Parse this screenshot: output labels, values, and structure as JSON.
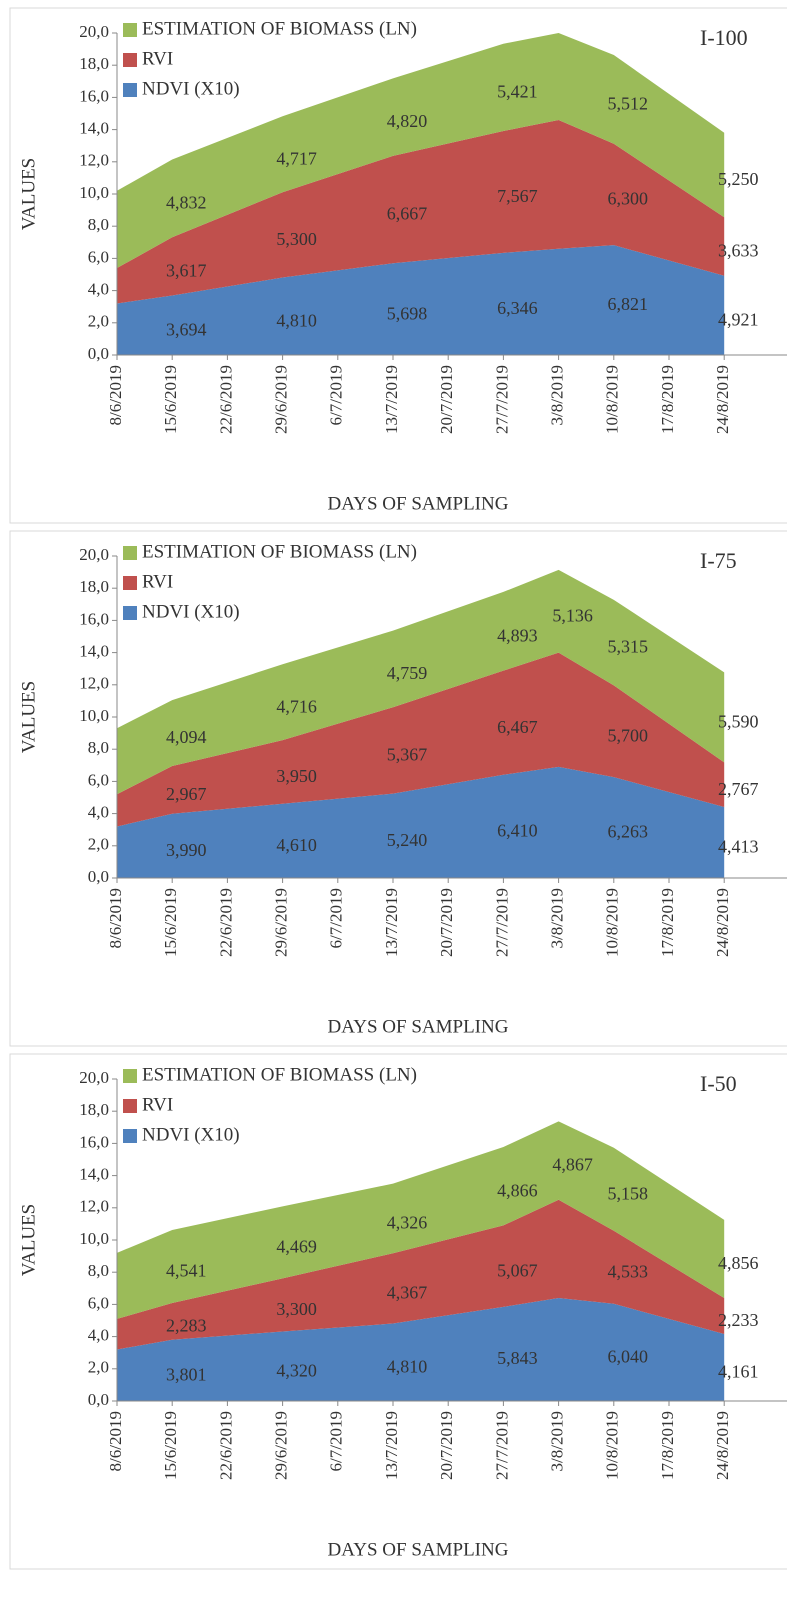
{
  "chart_data": [
    {
      "type": "area",
      "stacked": true,
      "title": "I-100",
      "x_label": "DAYS OF SAMPLING",
      "y_label": "VALUES",
      "x": [
        "8/6/2019",
        "15/6/2019",
        "29/6/2019",
        "13/7/2019",
        "27/7/2019",
        "3/8/2019",
        "10/8/2019",
        "24/8/2019"
      ],
      "xticks": [
        "8/6/2019",
        "15/6/2019",
        "22/6/2019",
        "29/6/2019",
        "6/7/2019",
        "13/7/2019",
        "20/7/2019",
        "27/7/2019",
        "3/8/2019",
        "10/8/2019",
        "17/8/2019",
        "24/8/2019"
      ],
      "ylim": [
        0,
        20
      ],
      "yticks": [
        {
          "value": 0,
          "label": "0,0"
        },
        {
          "value": 2,
          "label": "2,0"
        },
        {
          "value": 4,
          "label": "4,0"
        },
        {
          "value": 6,
          "label": "6,0"
        },
        {
          "value": 8,
          "label": "8,0"
        },
        {
          "value": 10,
          "label": "10,0"
        },
        {
          "value": 12,
          "label": "12,0"
        },
        {
          "value": 14,
          "label": "14,0"
        },
        {
          "value": 16,
          "label": "16,0"
        },
        {
          "value": 18,
          "label": "18,0"
        },
        {
          "value": 20,
          "label": "20,0"
        }
      ],
      "series": [
        {
          "name": "NDVI (X10)",
          "color": "#4f81bd",
          "values": [
            3.2,
            3.694,
            4.81,
            5.698,
            6.346,
            6.6,
            6.821,
            4.921
          ],
          "value_labels": [
            null,
            "3,694",
            "4,810",
            "5,698",
            "6,346",
            null,
            "6,821",
            "4,921"
          ]
        },
        {
          "name": "RVI",
          "color": "#c0504d",
          "values": [
            2.2,
            3.617,
            5.3,
            6.667,
            7.567,
            8.0,
            6.3,
            3.633
          ],
          "value_labels": [
            null,
            "3,617",
            "5,300",
            "6,667",
            "7,567",
            null,
            "6,300",
            "3,633"
          ]
        },
        {
          "name": "ESTIMATION OF BIOMASS (LN)",
          "color": "#9bbb59",
          "values": [
            4.8,
            4.832,
            4.717,
            4.82,
            5.421,
            5.4,
            5.512,
            5.25
          ],
          "value_labels": [
            null,
            "4,832",
            "4,717",
            "4,820",
            "5,421",
            null,
            "5,512",
            "5,250"
          ]
        }
      ]
    },
    {
      "type": "area",
      "stacked": true,
      "title": "I-75",
      "x_label": "DAYS OF SAMPLING",
      "y_label": "VALUES",
      "x": [
        "8/6/2019",
        "15/6/2019",
        "29/6/2019",
        "13/7/2019",
        "27/7/2019",
        "3/8/2019",
        "10/8/2019",
        "24/8/2019"
      ],
      "xticks": [
        "8/6/2019",
        "15/6/2019",
        "22/6/2019",
        "29/6/2019",
        "6/7/2019",
        "13/7/2019",
        "20/7/2019",
        "27/7/2019",
        "3/8/2019",
        "10/8/2019",
        "17/8/2019",
        "24/8/2019"
      ],
      "ylim": [
        0,
        20
      ],
      "yticks": [
        {
          "value": 0,
          "label": "0,0"
        },
        {
          "value": 2,
          "label": "2,0"
        },
        {
          "value": 4,
          "label": "4,0"
        },
        {
          "value": 6,
          "label": "6,0"
        },
        {
          "value": 8,
          "label": "8,0"
        },
        {
          "value": 10,
          "label": "10,0"
        },
        {
          "value": 12,
          "label": "12,0"
        },
        {
          "value": 14,
          "label": "14,0"
        },
        {
          "value": 16,
          "label": "16,0"
        },
        {
          "value": 18,
          "label": "18,0"
        },
        {
          "value": 20,
          "label": "20,0"
        }
      ],
      "series": [
        {
          "name": "NDVI (X10)",
          "color": "#4f81bd",
          "values": [
            3.2,
            3.99,
            4.61,
            5.24,
            6.41,
            6.9,
            6.263,
            4.413
          ],
          "value_labels": [
            null,
            "3,990",
            "4,610",
            "5,240",
            "6,410",
            null,
            "6,263",
            "4,413"
          ]
        },
        {
          "name": "RVI",
          "color": "#c0504d",
          "values": [
            2.0,
            2.967,
            3.95,
            5.367,
            6.467,
            7.1,
            5.7,
            2.767
          ],
          "value_labels": [
            null,
            "2,967",
            "3,950",
            "5,367",
            "6,467",
            null,
            "5,700",
            "2,767"
          ]
        },
        {
          "name": "ESTIMATION OF BIOMASS (LN)",
          "color": "#9bbb59",
          "values": [
            4.1,
            4.094,
            4.716,
            4.759,
            4.893,
            5.136,
            5.315,
            5.59
          ],
          "value_labels": [
            null,
            "4,094",
            "4,716",
            "4,759",
            "4,893",
            "5,136",
            "5,315",
            "5,590"
          ]
        }
      ]
    },
    {
      "type": "area",
      "stacked": true,
      "title": "I-50",
      "x_label": "DAYS OF SAMPLING",
      "y_label": "VALUES",
      "x": [
        "8/6/2019",
        "15/6/2019",
        "29/6/2019",
        "13/7/2019",
        "27/7/2019",
        "3/8/2019",
        "10/8/2019",
        "24/8/2019"
      ],
      "xticks": [
        "8/6/2019",
        "15/6/2019",
        "22/6/2019",
        "29/6/2019",
        "6/7/2019",
        "13/7/2019",
        "20/7/2019",
        "27/7/2019",
        "3/8/2019",
        "10/8/2019",
        "17/8/2019",
        "24/8/2019"
      ],
      "ylim": [
        0,
        20
      ],
      "yticks": [
        {
          "value": 0,
          "label": "0,0"
        },
        {
          "value": 2,
          "label": "2,0"
        },
        {
          "value": 4,
          "label": "4,0"
        },
        {
          "value": 6,
          "label": "6,0"
        },
        {
          "value": 8,
          "label": "8,0"
        },
        {
          "value": 10,
          "label": "10,0"
        },
        {
          "value": 12,
          "label": "12,0"
        },
        {
          "value": 14,
          "label": "14,0"
        },
        {
          "value": 16,
          "label": "16,0"
        },
        {
          "value": 18,
          "label": "18,0"
        },
        {
          "value": 20,
          "label": "20,0"
        }
      ],
      "series": [
        {
          "name": "NDVI (X10)",
          "color": "#4f81bd",
          "values": [
            3.2,
            3.801,
            4.32,
            4.81,
            5.843,
            6.4,
            6.04,
            4.161
          ],
          "value_labels": [
            null,
            "3,801",
            "4,320",
            "4,810",
            "5,843",
            null,
            "6,040",
            "4,161"
          ]
        },
        {
          "name": "RVI",
          "color": "#c0504d",
          "values": [
            1.9,
            2.283,
            3.3,
            4.367,
            5.067,
            6.1,
            4.533,
            2.233
          ],
          "value_labels": [
            null,
            "2,283",
            "3,300",
            "4,367",
            "5,067",
            null,
            "4,533",
            "2,233"
          ]
        },
        {
          "name": "ESTIMATION OF BIOMASS (LN)",
          "color": "#9bbb59",
          "values": [
            4.1,
            4.541,
            4.469,
            4.326,
            4.866,
            4.867,
            5.158,
            4.856
          ],
          "value_labels": [
            null,
            "4,541",
            "4,469",
            "4,326",
            "4,866",
            "4,867",
            "5,158",
            "4,856"
          ]
        }
      ]
    }
  ]
}
